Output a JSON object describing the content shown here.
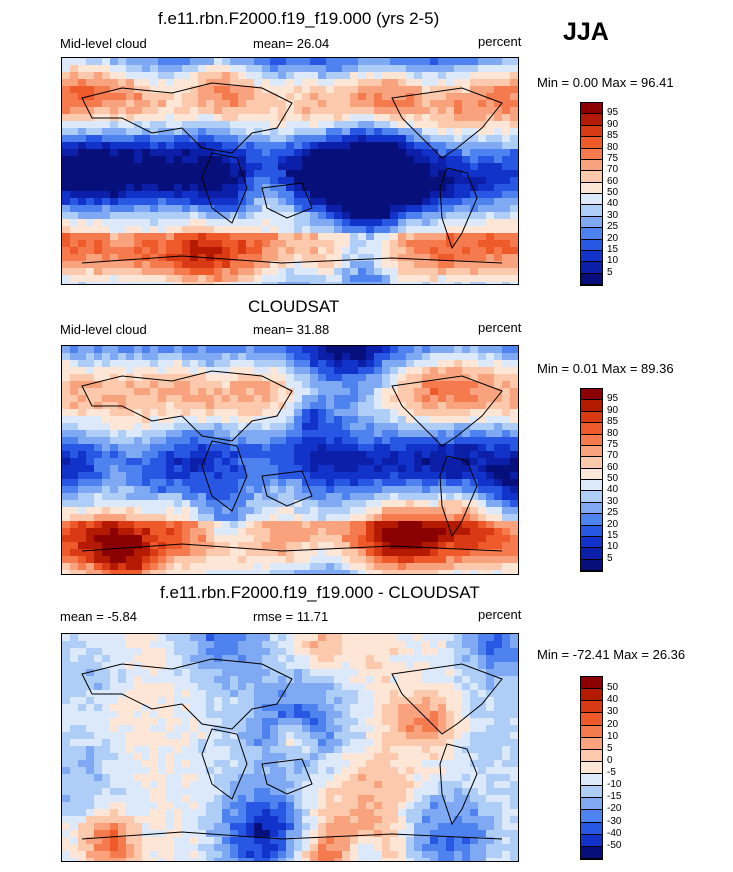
{
  "season": "JJA",
  "panels": [
    {
      "title": "f.e11.rbn.F2000.f19_f19.000 (yrs 2-5)",
      "left_label": "Mid-level cloud",
      "center_label": "mean=  26.04",
      "right_label": "percent",
      "minmax": "Min =   0.00 Max =  96.41",
      "colorbar": {
        "labels": [
          "95",
          "90",
          "85",
          "80",
          "75",
          "70",
          "60",
          "50",
          "40",
          "30",
          "25",
          "20",
          "15",
          "10",
          "5"
        ],
        "colors": [
          "#8b0000",
          "#b31a00",
          "#d93a14",
          "#ee5a2a",
          "#f57b4f",
          "#f9a27e",
          "#fcc9ac",
          "#fde6d6",
          "#dbe9fb",
          "#aecdf7",
          "#7faaf3",
          "#4e82ee",
          "#2857e4",
          "#1233c9",
          "#0c1fa8",
          "#07107a"
        ]
      },
      "field_seed": 11,
      "field_bias": 0
    },
    {
      "title": "CLOUDSAT",
      "left_label": "Mid-level cloud",
      "center_label": "mean=  31.88",
      "right_label": "percent",
      "minmax": "Min =   0.01 Max =  89.36",
      "colorbar": {
        "labels": [
          "95",
          "90",
          "85",
          "80",
          "75",
          "70",
          "60",
          "50",
          "40",
          "30",
          "25",
          "20",
          "15",
          "10",
          "5"
        ],
        "colors": [
          "#8b0000",
          "#b31a00",
          "#d93a14",
          "#ee5a2a",
          "#f57b4f",
          "#f9a27e",
          "#fcc9ac",
          "#fde6d6",
          "#dbe9fb",
          "#aecdf7",
          "#7faaf3",
          "#4e82ee",
          "#2857e4",
          "#1233c9",
          "#0c1fa8",
          "#07107a"
        ]
      },
      "field_seed": 27,
      "field_bias": 0.4
    },
    {
      "title": "f.e11.rbn.F2000.f19_f19.000 - CLOUDSAT",
      "left_label": "mean =  -5.84",
      "center_label": "rmse =  11.71",
      "right_label": "percent",
      "minmax": "Min = -72.41 Max =  26.36",
      "colorbar": {
        "labels": [
          "50",
          "40",
          "30",
          "20",
          "10",
          "5",
          "0",
          "-5",
          "-10",
          "-15",
          "-20",
          "-30",
          "-40",
          "-50"
        ],
        "colors": [
          "#8b0000",
          "#b31a00",
          "#d93a14",
          "#ee5a2a",
          "#f57b4f",
          "#f9a27e",
          "#fcc9ac",
          "#fde6d6",
          "#dbe9fb",
          "#aecdf7",
          "#7faaf3",
          "#4e82ee",
          "#2857e4",
          "#1233c9",
          "#07107a"
        ]
      },
      "field_seed": 53,
      "field_bias": -0.3
    }
  ]
}
